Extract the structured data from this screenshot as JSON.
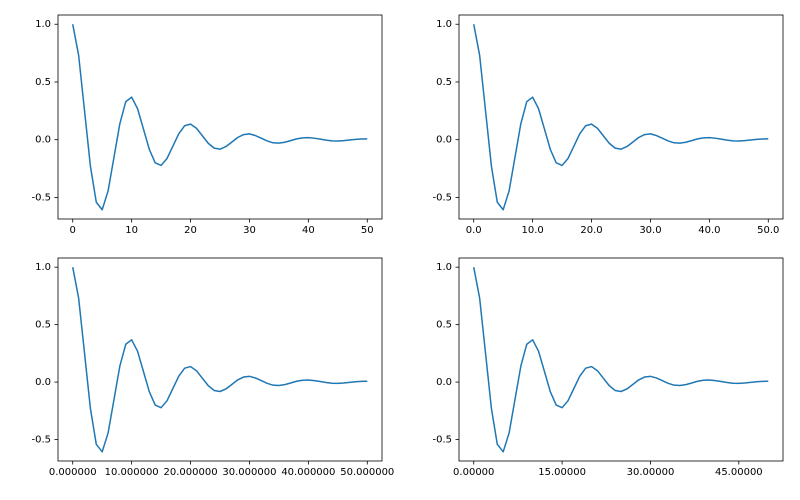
{
  "chart_data": [
    {
      "type": "line",
      "x": [
        0,
        1,
        2,
        3,
        4,
        5,
        6,
        7,
        8,
        9,
        10,
        11,
        12,
        13,
        14,
        15,
        16,
        17,
        18,
        19,
        20,
        21,
        22,
        23,
        24,
        25,
        26,
        27,
        28,
        29,
        30,
        31,
        32,
        33,
        34,
        35,
        36,
        37,
        38,
        39,
        40,
        41,
        42,
        43,
        44,
        45,
        46,
        47,
        48,
        49,
        50
      ],
      "series": [
        {
          "color": "#1f77b4",
          "values": [
            1,
            0.732,
            0.253,
            -0.229,
            -0.542,
            -0.607,
            -0.444,
            -0.153,
            0.139,
            0.329,
            0.368,
            0.269,
            0.093,
            -0.084,
            -0.2,
            -0.223,
            -0.163,
            -0.056,
            0.051,
            0.121,
            0.135,
            0.099,
            0.034,
            -0.031,
            -0.073,
            -0.082,
            -0.06,
            -0.021,
            0.019,
            0.044,
            0.05,
            0.036,
            0.013,
            -0.011,
            -0.027,
            -0.03,
            -0.022,
            -0.008,
            0.007,
            0.016,
            0.018,
            0.013,
            0.005,
            -0.004,
            -0.01,
            -0.011,
            -0.008,
            -0.003,
            0.003,
            0.006,
            0.007
          ]
        }
      ],
      "xlim": [
        -2.5,
        52.5
      ],
      "xticks": [
        0,
        10,
        20,
        30,
        40,
        50
      ],
      "ylim": [
        -0.687,
        1.08
      ],
      "yticks": [
        -0.5,
        {
          "value": 0,
          "label": "0.0"
        },
        0.5,
        {
          "value": 1,
          "label": "1.0"
        }
      ]
    },
    {
      "type": "line",
      "x": [
        0,
        1,
        2,
        3,
        4,
        5,
        6,
        7,
        8,
        9,
        10,
        11,
        12,
        13,
        14,
        15,
        16,
        17,
        18,
        19,
        20,
        21,
        22,
        23,
        24,
        25,
        26,
        27,
        28,
        29,
        30,
        31,
        32,
        33,
        34,
        35,
        36,
        37,
        38,
        39,
        40,
        41,
        42,
        43,
        44,
        45,
        46,
        47,
        48,
        49,
        50
      ],
      "series": [
        {
          "color": "#1f77b4",
          "values": [
            1,
            0.732,
            0.253,
            -0.229,
            -0.542,
            -0.607,
            -0.444,
            -0.153,
            0.139,
            0.329,
            0.368,
            0.269,
            0.093,
            -0.084,
            -0.2,
            -0.223,
            -0.163,
            -0.056,
            0.051,
            0.121,
            0.135,
            0.099,
            0.034,
            -0.031,
            -0.073,
            -0.082,
            -0.06,
            -0.021,
            0.019,
            0.044,
            0.05,
            0.036,
            0.013,
            -0.011,
            -0.027,
            -0.03,
            -0.022,
            -0.008,
            0.007,
            0.016,
            0.018,
            0.013,
            0.005,
            -0.004,
            -0.01,
            -0.011,
            -0.008,
            -0.003,
            0.003,
            0.006,
            0.007
          ]
        }
      ],
      "xlim": [
        -2.5,
        52.5
      ],
      "xticks": [
        {
          "value": 0,
          "label": "0.0"
        },
        {
          "value": 10,
          "label": "10.0"
        },
        {
          "value": 20,
          "label": "20.0"
        },
        {
          "value": 30,
          "label": "30.0"
        },
        {
          "value": 40,
          "label": "40.0"
        },
        {
          "value": 50,
          "label": "50.0"
        }
      ],
      "ylim": [
        -0.687,
        1.08
      ],
      "yticks": [
        -0.5,
        {
          "value": 0,
          "label": "0.0"
        },
        0.5,
        {
          "value": 1,
          "label": "1.0"
        }
      ]
    },
    {
      "type": "line",
      "x": [
        0,
        1,
        2,
        3,
        4,
        5,
        6,
        7,
        8,
        9,
        10,
        11,
        12,
        13,
        14,
        15,
        16,
        17,
        18,
        19,
        20,
        21,
        22,
        23,
        24,
        25,
        26,
        27,
        28,
        29,
        30,
        31,
        32,
        33,
        34,
        35,
        36,
        37,
        38,
        39,
        40,
        41,
        42,
        43,
        44,
        45,
        46,
        47,
        48,
        49,
        50
      ],
      "series": [
        {
          "color": "#1f77b4",
          "values": [
            1,
            0.732,
            0.253,
            -0.229,
            -0.542,
            -0.607,
            -0.444,
            -0.153,
            0.139,
            0.329,
            0.368,
            0.269,
            0.093,
            -0.084,
            -0.2,
            -0.223,
            -0.163,
            -0.056,
            0.051,
            0.121,
            0.135,
            0.099,
            0.034,
            -0.031,
            -0.073,
            -0.082,
            -0.06,
            -0.021,
            0.019,
            0.044,
            0.05,
            0.036,
            0.013,
            -0.011,
            -0.027,
            -0.03,
            -0.022,
            -0.008,
            0.007,
            0.016,
            0.018,
            0.013,
            0.005,
            -0.004,
            -0.01,
            -0.011,
            -0.008,
            -0.003,
            0.003,
            0.006,
            0.007
          ]
        }
      ],
      "xlim": [
        -2.5,
        52.5
      ],
      "xticks": [
        {
          "value": 0,
          "label": "0.000000"
        },
        {
          "value": 10,
          "label": "10.000000"
        },
        {
          "value": 20,
          "label": "20.000000"
        },
        {
          "value": 30,
          "label": "30.000000"
        },
        {
          "value": 40,
          "label": "40.000000"
        },
        {
          "value": 50,
          "label": "50.000000"
        }
      ],
      "ylim": [
        -0.687,
        1.08
      ],
      "yticks": [
        -0.5,
        {
          "value": 0,
          "label": "0.0"
        },
        0.5,
        {
          "value": 1,
          "label": "1.0"
        }
      ]
    },
    {
      "type": "line",
      "x": [
        0,
        1,
        2,
        3,
        4,
        5,
        6,
        7,
        8,
        9,
        10,
        11,
        12,
        13,
        14,
        15,
        16,
        17,
        18,
        19,
        20,
        21,
        22,
        23,
        24,
        25,
        26,
        27,
        28,
        29,
        30,
        31,
        32,
        33,
        34,
        35,
        36,
        37,
        38,
        39,
        40,
        41,
        42,
        43,
        44,
        45,
        46,
        47,
        48,
        49,
        50
      ],
      "series": [
        {
          "color": "#1f77b4",
          "values": [
            1,
            0.732,
            0.253,
            -0.229,
            -0.542,
            -0.607,
            -0.444,
            -0.153,
            0.139,
            0.329,
            0.368,
            0.269,
            0.093,
            -0.084,
            -0.2,
            -0.223,
            -0.163,
            -0.056,
            0.051,
            0.121,
            0.135,
            0.099,
            0.034,
            -0.031,
            -0.073,
            -0.082,
            -0.06,
            -0.021,
            0.019,
            0.044,
            0.05,
            0.036,
            0.013,
            -0.011,
            -0.027,
            -0.03,
            -0.022,
            -0.008,
            0.007,
            0.016,
            0.018,
            0.013,
            0.005,
            -0.004,
            -0.01,
            -0.011,
            -0.008,
            -0.003,
            0.003,
            0.006,
            0.007
          ]
        }
      ],
      "xlim": [
        -2.5,
        52.5
      ],
      "xticks": [
        {
          "value": 0,
          "label": "0.00000"
        },
        {
          "value": 15,
          "label": "15.00000"
        },
        {
          "value": 30,
          "label": "30.00000"
        },
        {
          "value": 45,
          "label": "45.00000"
        }
      ],
      "ylim": [
        -0.687,
        1.08
      ],
      "yticks": [
        -0.5,
        {
          "value": 0,
          "label": "0.0"
        },
        0.5,
        {
          "value": 1,
          "label": "1.0"
        }
      ]
    }
  ]
}
